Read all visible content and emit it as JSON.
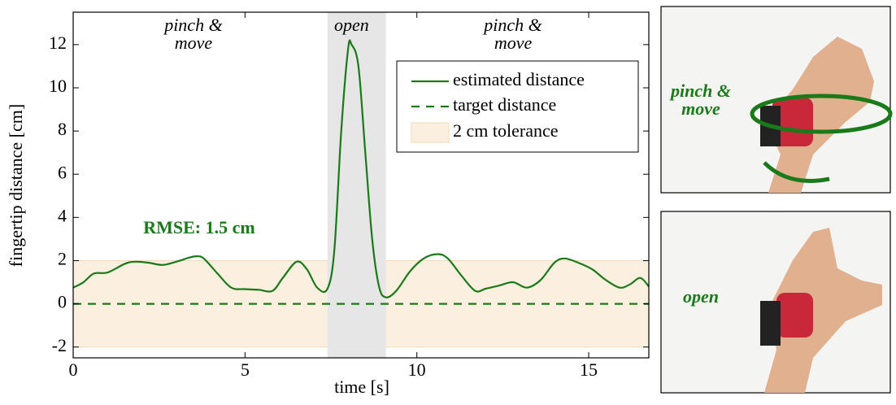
{
  "chart_data": {
    "type": "line",
    "xlabel": "time [s]",
    "ylabel": "fingertip distance [cm]",
    "xlim": [
      0,
      16.75
    ],
    "ylim": [
      -2.5,
      13.5
    ],
    "xticks": [
      0,
      5,
      10,
      15
    ],
    "yticks": [
      -2,
      0,
      2,
      4,
      6,
      8,
      10,
      12
    ],
    "x": [
      0,
      0.3,
      0.6,
      1.0,
      1.5,
      1.8,
      2.2,
      2.6,
      3.0,
      3.4,
      3.6,
      3.8,
      4.2,
      4.6,
      5.0,
      5.4,
      5.8,
      6.1,
      6.5,
      6.8,
      7.1,
      7.4,
      7.6,
      7.8,
      8.0,
      8.1,
      8.3,
      8.5,
      8.7,
      8.9,
      9.1,
      9.4,
      9.8,
      10.2,
      10.6,
      10.9,
      11.3,
      11.7,
      12.0,
      12.4,
      12.8,
      13.2,
      13.6,
      14.0,
      14.3,
      14.7,
      15.1,
      15.5,
      15.9,
      16.2,
      16.5,
      16.75
    ],
    "series": [
      {
        "name": "estimated distance",
        "color": "#1a7a1a",
        "values": [
          0.75,
          1.0,
          1.4,
          1.45,
          1.85,
          1.95,
          1.9,
          1.8,
          1.95,
          2.15,
          2.2,
          2.1,
          1.4,
          0.75,
          0.68,
          0.65,
          0.6,
          1.2,
          1.95,
          1.6,
          0.75,
          0.7,
          2.5,
          8,
          11.8,
          12.0,
          11,
          7,
          3,
          0.8,
          0.3,
          0.6,
          1.5,
          2.1,
          2.3,
          2.1,
          1.3,
          0.6,
          0.7,
          0.85,
          1.0,
          0.75,
          1.1,
          1.9,
          2.1,
          1.9,
          1.6,
          1.1,
          0.75,
          0.9,
          1.2,
          0.8
        ]
      }
    ],
    "target": {
      "name": "target distance",
      "value": 0,
      "color": "#1a7a1a"
    },
    "tolerance": {
      "name": "2 cm tolerance",
      "lower": -2,
      "upper": 2,
      "color": "#fbefdf"
    },
    "open_region": {
      "xlim": [
        7.4,
        9.1
      ],
      "color": "#e6e6e6"
    },
    "annotations": [
      {
        "lines": [
          "pinch &",
          "move"
        ],
        "x": 3.5
      },
      {
        "lines": [
          "open"
        ],
        "x": 8.1
      },
      {
        "lines": [
          "pinch &",
          "move"
        ],
        "x": 12.8
      }
    ],
    "rmse_label": "RMSE: 1.5 cm",
    "photos": [
      {
        "label": [
          "pinch &",
          "move"
        ]
      },
      {
        "label": [
          "open"
        ]
      }
    ]
  }
}
